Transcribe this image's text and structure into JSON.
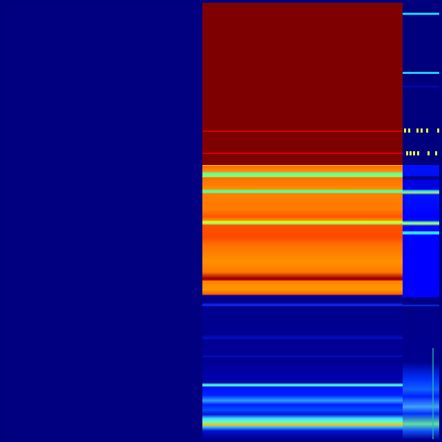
{
  "colormap": {
    "name": "jet",
    "low": "#00007f",
    "mid_low": "#0000ff",
    "mid": "#40ffc0",
    "mid_high": "#ffd000",
    "high": "#ff6000",
    "max": "#7f0000"
  }
}
